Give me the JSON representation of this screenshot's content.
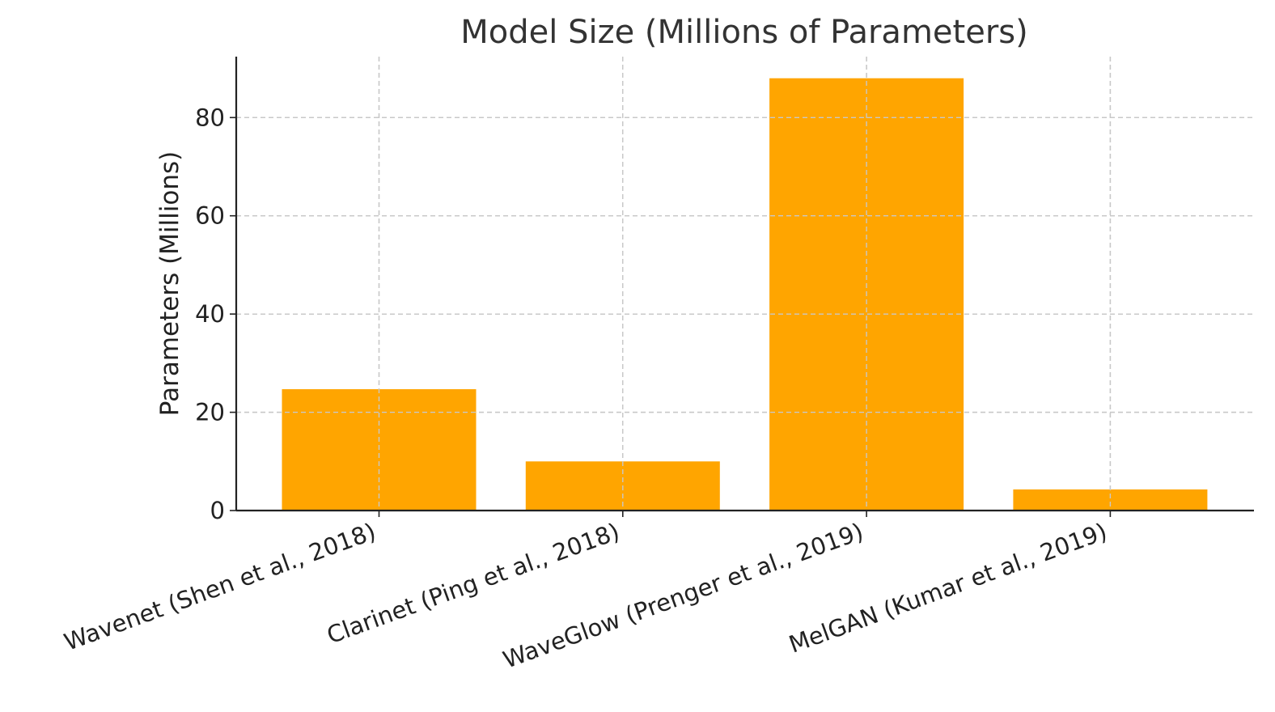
{
  "chart_data": {
    "type": "bar",
    "title": "Model Size (Millions of Parameters)",
    "xlabel": "",
    "ylabel": "Parameters (Millions)",
    "categories": [
      "Wavenet (Shen et al., 2018)",
      "Clarinet (Ping et al., 2018)",
      "WaveGlow (Prenger et al., 2019)",
      "MelGAN (Kumar et al., 2019)"
    ],
    "values": [
      24.7,
      10.0,
      88.0,
      4.3
    ],
    "yticks": [
      0,
      20,
      40,
      60,
      80
    ],
    "ylim": [
      0,
      92.4
    ],
    "grid": true,
    "bar_color": "#FFA500"
  }
}
